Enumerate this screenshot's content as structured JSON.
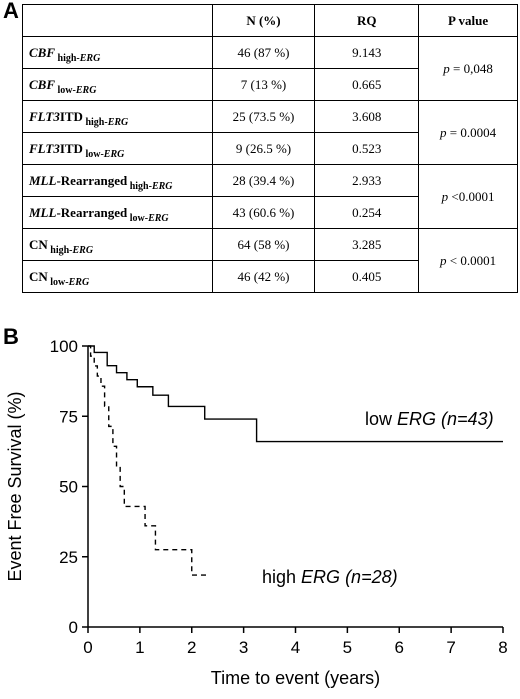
{
  "panel_a_label": "A",
  "panel_b_label": "B",
  "table": {
    "headers": [
      "",
      "N (%)",
      "RQ",
      "P value"
    ],
    "rows": [
      {
        "group": "CBF",
        "group_italic": true,
        "subscript": "high-ERG",
        "n": "46 (87 %)",
        "rq": "9.143"
      },
      {
        "group": "CBF",
        "group_italic": true,
        "subscript": "low-ERG",
        "n": "7 (13 %)",
        "rq": "0.665"
      },
      {
        "group_prefix": "FLT3",
        "group": "ITD",
        "subscript": "high-ERG",
        "n": "25 (73.5 %)",
        "rq": "3.608"
      },
      {
        "group_prefix": "FLT3",
        "group": "ITD",
        "subscript": "low-ERG",
        "n": "9 (26.5 %)",
        "rq": "0.523"
      },
      {
        "group_prefix": "MLL",
        "group": "-Rearranged",
        "subscript": "high-ERG",
        "n": "28 (39.4 %)",
        "rq": "2.933"
      },
      {
        "group_prefix": "MLL",
        "group": "-Rearranged",
        "subscript": "low-ERG",
        "n": "43 (60.6 %)",
        "rq": "0.254"
      },
      {
        "group": "CN",
        "group_italic": false,
        "subscript": "high-ERG",
        "n": "64 (58 %)",
        "rq": "3.285"
      },
      {
        "group": "CN",
        "group_italic": false,
        "subscript": "low-ERG",
        "n": "46 (42 %)",
        "rq": "0.405"
      }
    ],
    "pvalues": [
      {
        "p": "p",
        "rel": " = 0,048"
      },
      {
        "p": "p",
        "rel": " = 0.0004"
      },
      {
        "p": "p",
        "rel": " <0.0001"
      },
      {
        "p": "p",
        "rel": " < 0.0001"
      }
    ]
  },
  "chart_data": {
    "type": "line",
    "xlabel": "Time to event (years)",
    "ylabel": "Event Free Survival (%)",
    "xlim": [
      0,
      8
    ],
    "ylim": [
      0,
      100
    ],
    "xticks": [
      0,
      1,
      2,
      3,
      4,
      5,
      6,
      7,
      8
    ],
    "yticks": [
      0,
      25,
      50,
      75,
      100
    ],
    "series": [
      {
        "name": "low ERG (n=43)",
        "label_prefix": "low ",
        "label_gene": "ERG",
        "label_n": " (n=43)",
        "style": "solid",
        "x": [
          0,
          0.12,
          0.37,
          0.55,
          0.75,
          0.95,
          1.25,
          1.55,
          2.25,
          3.25,
          8.0
        ],
        "y": [
          100,
          97.7,
          93,
          90.5,
          88,
          85.5,
          82.5,
          78.5,
          74,
          66,
          66
        ]
      },
      {
        "name": "high ERG (n=28)",
        "label_prefix": "high ",
        "label_gene": "ERG",
        "label_n": " (n=28)",
        "style": "dashed",
        "x": [
          0,
          0.05,
          0.12,
          0.18,
          0.25,
          0.32,
          0.4,
          0.48,
          0.55,
          0.62,
          0.7,
          0.85,
          1.1,
          1.3,
          2.0,
          2.35
        ],
        "y": [
          100,
          96.4,
          92.9,
          89.3,
          85.7,
          78.6,
          71.4,
          64.3,
          57.1,
          50,
          42.9,
          42.9,
          36,
          27.5,
          18.5,
          18.5
        ]
      }
    ]
  }
}
